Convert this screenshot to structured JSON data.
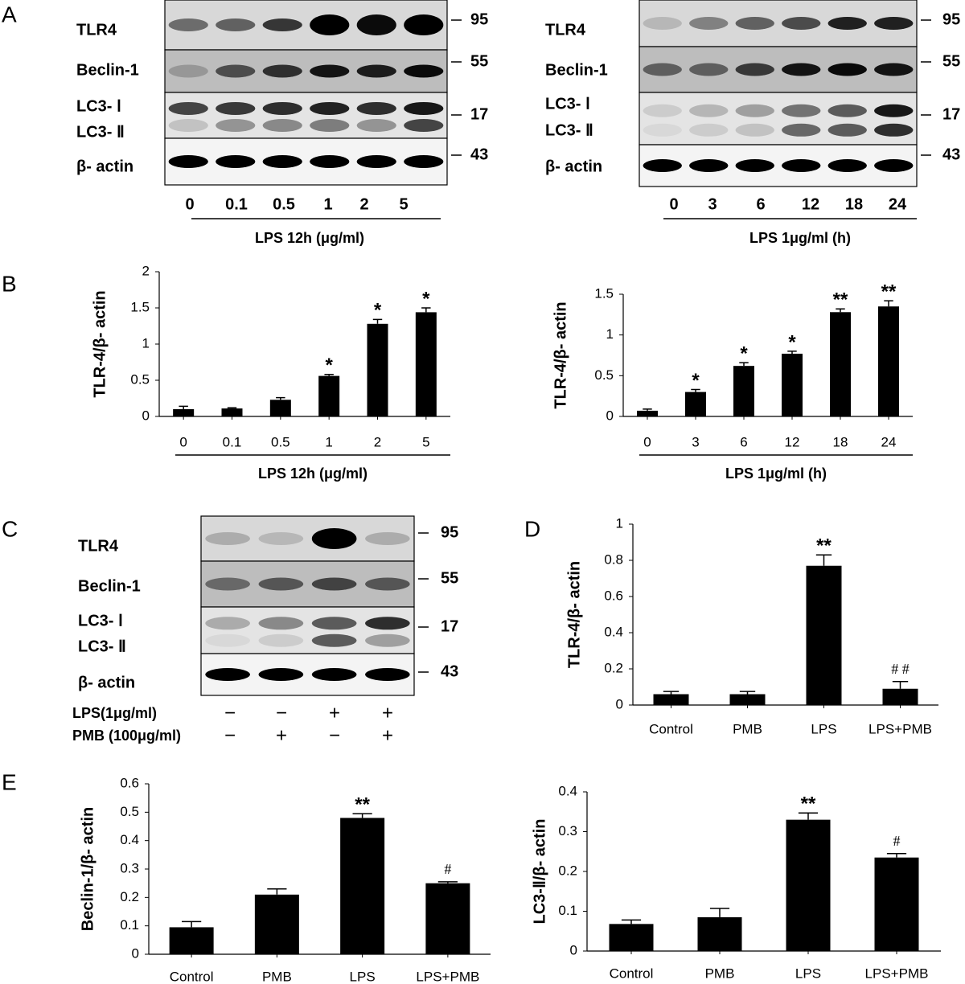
{
  "panel_labels": [
    "A",
    "B",
    "C",
    "D",
    "E"
  ],
  "blots": [
    {
      "rows": [
        "TLR4",
        "Beclin-1",
        "LC3- Ⅰ",
        "LC3- Ⅱ",
        "β- actin"
      ],
      "markers": [
        "95",
        "55",
        "17",
        "43"
      ],
      "lanes": [
        "0",
        "0.1",
        "0.5",
        "1",
        "2",
        "5"
      ],
      "xlabel": "LPS 12h (μg/ml)"
    },
    {
      "rows": [
        "TLR4",
        "Beclin-1",
        "LC3- Ⅰ",
        "LC3- Ⅱ",
        "β- actin"
      ],
      "markers": [
        "95",
        "55",
        "17",
        "43"
      ],
      "lanes": [
        "0",
        "3",
        "6",
        "12",
        "18",
        "24"
      ],
      "xlabel": "LPS 1μg/ml (h)"
    },
    {
      "rows": [
        "TLR4",
        "Beclin-1",
        "LC3- Ⅰ",
        "LC3- Ⅱ",
        "β- actin"
      ],
      "markers": [
        "95",
        "55",
        "17",
        "43"
      ],
      "treatments": [
        {
          "label": "LPS(1μg/ml)",
          "signs": [
            "−",
            "−",
            "+",
            "+"
          ]
        },
        {
          "label": "PMB (100μg/ml)",
          "signs": [
            "−",
            "+",
            "−",
            "+"
          ]
        }
      ]
    }
  ],
  "chart_data": [
    {
      "type": "bar",
      "ylabel": "TLR-4/β- actin",
      "xlabel": "LPS 12h (μg/ml)",
      "color": "#000000",
      "categories": [
        "0",
        "0.1",
        "0.5",
        "1",
        "2",
        "5"
      ],
      "values": [
        0.1,
        0.11,
        0.23,
        0.56,
        1.28,
        1.44
      ],
      "errors": [
        0.04,
        0.01,
        0.03,
        0.02,
        0.06,
        0.06
      ],
      "annotations": [
        null,
        null,
        null,
        "*",
        "*",
        "*"
      ],
      "ylim": [
        0,
        2
      ],
      "yticks": [
        0,
        0.5,
        1,
        1.5,
        2
      ]
    },
    {
      "type": "bar",
      "ylabel": "TLR-4/β- actin",
      "xlabel": "LPS 1μg/ml (h)",
      "color": "#000000",
      "categories": [
        "0",
        "3",
        "6",
        "12",
        "18",
        "24"
      ],
      "values": [
        0.07,
        0.3,
        0.62,
        0.77,
        1.28,
        1.35
      ],
      "errors": [
        0.02,
        0.03,
        0.04,
        0.03,
        0.04,
        0.07
      ],
      "annotations": [
        null,
        "*",
        "*",
        "*",
        "**",
        "**"
      ],
      "ylim": [
        0,
        1.5
      ],
      "yticks": [
        0,
        0.5,
        1,
        1.5
      ]
    },
    {
      "type": "bar",
      "ylabel": "TLR-4/β- actin",
      "color": "#000000",
      "categories": [
        "Control",
        "PMB",
        "LPS",
        "LPS+PMB"
      ],
      "values": [
        0.06,
        0.06,
        0.77,
        0.09
      ],
      "errors": [
        0.015,
        0.015,
        0.06,
        0.04
      ],
      "annotations": [
        null,
        null,
        "**",
        "# #"
      ],
      "ylim": [
        0,
        1
      ],
      "yticks": [
        0,
        0.2,
        0.4,
        0.6,
        0.8,
        1
      ]
    },
    {
      "type": "bar",
      "ylabel": "Beclin-1/β- actin",
      "color": "#000000",
      "categories": [
        "Control",
        "PMB",
        "LPS",
        "LPS+PMB"
      ],
      "values": [
        0.095,
        0.21,
        0.48,
        0.25
      ],
      "errors": [
        0.02,
        0.02,
        0.015,
        0.005
      ],
      "annotations": [
        null,
        null,
        "**",
        "#"
      ],
      "ylim": [
        0,
        0.6
      ],
      "yticks": [
        0,
        0.1,
        0.2,
        0.3,
        0.4,
        0.5,
        0.6
      ]
    },
    {
      "type": "bar",
      "ylabel": "LC3-Ⅱ/β- actin",
      "color": "#000000",
      "categories": [
        "Control",
        "PMB",
        "LPS",
        "LPS+PMB"
      ],
      "values": [
        0.068,
        0.085,
        0.33,
        0.235
      ],
      "errors": [
        0.01,
        0.022,
        0.017,
        0.01
      ],
      "annotations": [
        null,
        null,
        "**",
        "#"
      ],
      "ylim": [
        0,
        0.4
      ],
      "yticks": [
        0,
        0.1,
        0.2,
        0.3,
        0.4
      ]
    }
  ]
}
